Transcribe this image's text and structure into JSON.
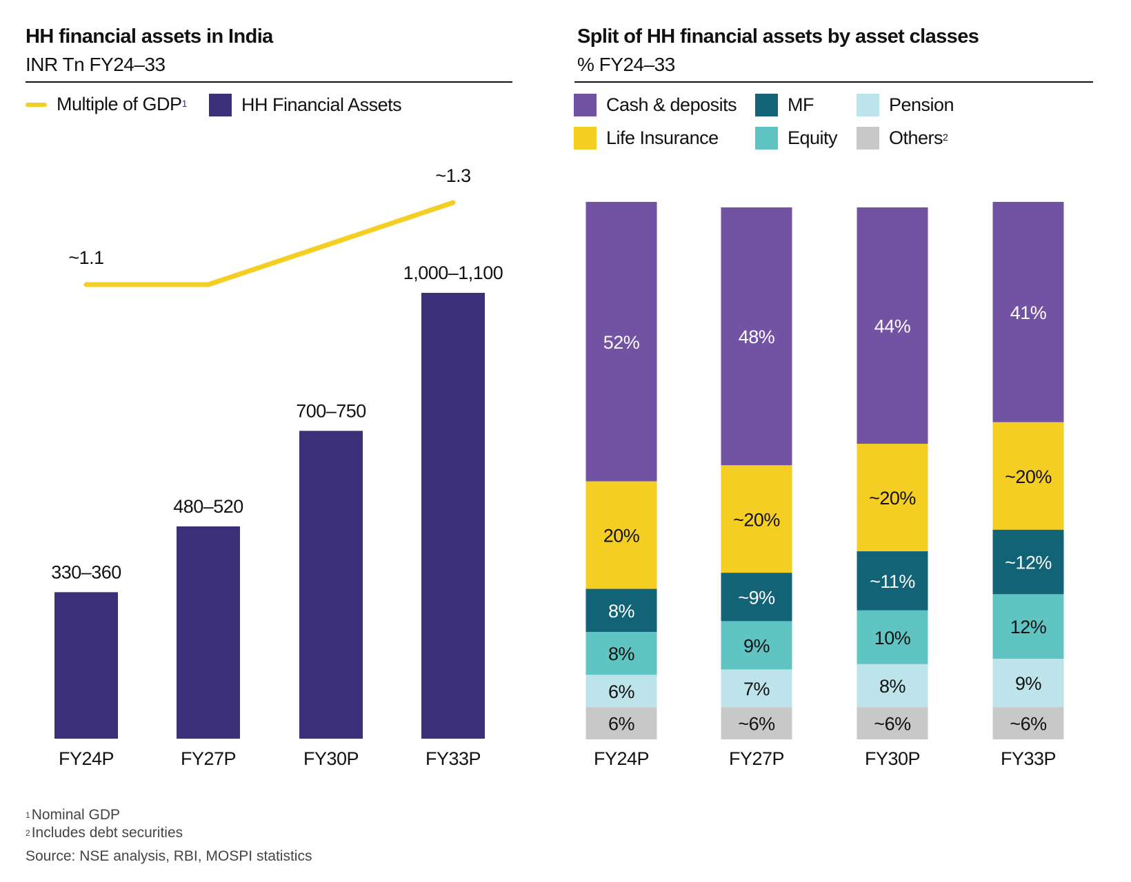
{
  "left_panel": {
    "title": "HH financial assets in India",
    "subtitle": "INR Tn FY24–33",
    "legend": [
      {
        "label": "Multiple of GDP",
        "sup": "1",
        "color": "#f5ce23",
        "shape": "line"
      },
      {
        "label": "HH Financial Assets",
        "sup": "",
        "color": "#3c2f7a",
        "shape": "square"
      }
    ]
  },
  "right_panel": {
    "title": "Split of HH financial assets by asset classes",
    "subtitle": "% FY24–33",
    "legend": [
      {
        "label": "Cash & deposits",
        "sup": "",
        "color": "#7253a3"
      },
      {
        "label": "MF",
        "sup": "",
        "color": "#126375"
      },
      {
        "label": "Pension",
        "sup": "",
        "color": "#bde4ea"
      },
      {
        "label": "Life Insurance",
        "sup": "",
        "color": "#f5ce23"
      },
      {
        "label": "Equity",
        "sup": "",
        "color": "#5fc4c2"
      },
      {
        "label": "Others",
        "sup": "2",
        "color": "#c8c8c8"
      }
    ]
  },
  "footnotes": {
    "note1_sup": "1",
    "note1": "Nominal GDP",
    "note2_sup": "2",
    "note2": "Includes debt securities",
    "source": "Source: NSE analysis, RBI, MOSPI statistics"
  },
  "chart_data": [
    {
      "type": "bar",
      "title": "HH financial assets in India",
      "subtitle": "INR Tn FY24–33",
      "xlabel": "",
      "ylabel": "INR Tn",
      "grid": false,
      "legend_position": "top-left",
      "categories": [
        "FY24P",
        "FY27P",
        "FY30P",
        "FY33P"
      ],
      "series": [
        {
          "name": "HH Financial Assets",
          "type": "bar",
          "color": "#3c2f7a",
          "values": [
            345,
            500,
            725,
            1050
          ],
          "ranges": [
            [
              330,
              360
            ],
            [
              480,
              520
            ],
            [
              700,
              750
            ],
            [
              1000,
              1100
            ]
          ],
          "labels": [
            "330–360",
            "480–520",
            "700–750",
            "1,000–1,100"
          ]
        },
        {
          "name": "Multiple of GDP",
          "type": "line",
          "color": "#f5ce23",
          "values": [
            1.1,
            1.1,
            1.2,
            1.3
          ],
          "labels": [
            "~1.1",
            "",
            "",
            "~1.3"
          ]
        }
      ],
      "ylim": [
        0,
        1100
      ]
    },
    {
      "type": "bar",
      "stacked": true,
      "title": "Split of HH financial assets by asset classes",
      "subtitle": "% FY24–33",
      "xlabel": "",
      "ylabel": "%",
      "grid": false,
      "legend_position": "top",
      "categories": [
        "FY24P",
        "FY27P",
        "FY30P",
        "FY33P"
      ],
      "series": [
        {
          "name": "Cash & deposits",
          "color": "#7253a3",
          "text_color": "#ffffff",
          "values": [
            52,
            48,
            44,
            41
          ],
          "labels": [
            "52%",
            "48%",
            "44%",
            "41%"
          ]
        },
        {
          "name": "Life Insurance",
          "color": "#f5ce23",
          "text_color": "#111111",
          "values": [
            20,
            20,
            20,
            20
          ],
          "labels": [
            "20%",
            "~20%",
            "~20%",
            "~20%"
          ]
        },
        {
          "name": "MF",
          "color": "#126375",
          "text_color": "#ffffff",
          "values": [
            8,
            9,
            11,
            12
          ],
          "labels": [
            "8%",
            "~9%",
            "~11%",
            "~12%"
          ]
        },
        {
          "name": "Equity",
          "color": "#5fc4c2",
          "text_color": "#111111",
          "values": [
            8,
            9,
            10,
            12
          ],
          "labels": [
            "8%",
            "9%",
            "10%",
            "12%"
          ]
        },
        {
          "name": "Pension",
          "color": "#bde4ea",
          "text_color": "#111111",
          "values": [
            6,
            7,
            8,
            9
          ],
          "labels": [
            "6%",
            "7%",
            "8%",
            "9%"
          ]
        },
        {
          "name": "Others",
          "color": "#c8c8c8",
          "text_color": "#111111",
          "values": [
            6,
            6,
            6,
            6
          ],
          "labels": [
            "6%",
            "~6%",
            "~6%",
            "~6%"
          ]
        }
      ],
      "ylim": [
        0,
        100
      ]
    }
  ]
}
